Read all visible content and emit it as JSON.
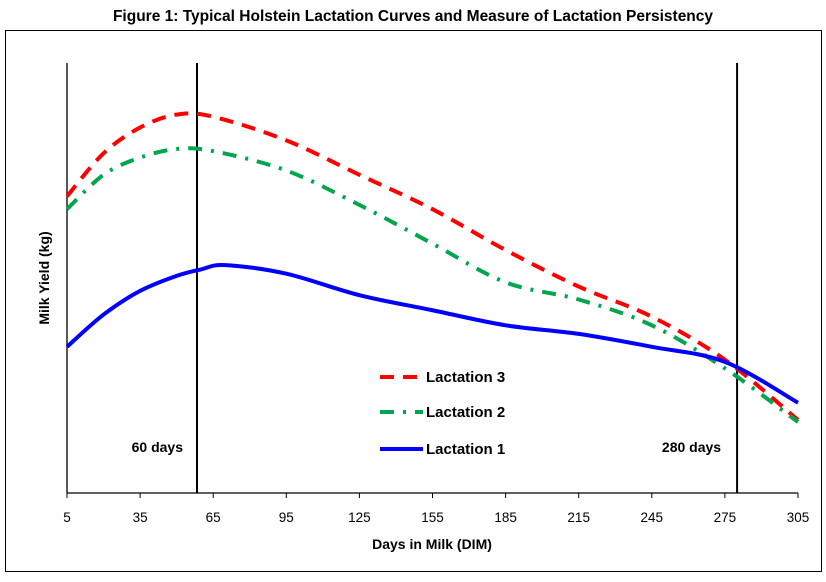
{
  "chart_data": {
    "type": "line",
    "title": "Figure 1: Typical Holstein Lactation Curves and Measure of Lactation Persistency",
    "xlabel": "Days in Milk (DIM)",
    "ylabel": "Milk Yield (kg)",
    "xlim": [
      5,
      305
    ],
    "ylim": [
      0,
      100
    ],
    "x_ticks": [
      "5",
      "35",
      "65",
      "95",
      "125",
      "155",
      "185",
      "215",
      "245",
      "275",
      "305"
    ],
    "y_ticks_shown": false,
    "grid": false,
    "legend_placement": "center-bottom",
    "reference_lines": [
      {
        "x": 60,
        "label": "60 days"
      },
      {
        "x": 280,
        "label": "280 days"
      }
    ],
    "series": [
      {
        "name": "Lactation 3",
        "color": "#ff0000",
        "style": "dashed",
        "x": [
          5,
          20,
          35,
          50,
          65,
          95,
          125,
          155,
          185,
          215,
          245,
          275,
          305
        ],
        "y": [
          69,
          79,
          85,
          88,
          87.5,
          82,
          74,
          66,
          56.5,
          48,
          41,
          31,
          17
        ]
      },
      {
        "name": "Lactation 2",
        "color": "#00a550",
        "style": "dash-dot",
        "x": [
          5,
          20,
          35,
          50,
          65,
          95,
          125,
          155,
          185,
          215,
          245,
          275,
          305
        ],
        "y": [
          66,
          74,
          78,
          80,
          79.5,
          75,
          67,
          58,
          49,
          45,
          39,
          29,
          16.5
        ]
      },
      {
        "name": "Lactation 1",
        "color": "#0000ff",
        "style": "solid",
        "x": [
          5,
          20,
          35,
          50,
          60,
          70,
          95,
          125,
          155,
          185,
          215,
          245,
          275,
          305
        ],
        "y": [
          34,
          41.5,
          47,
          50.5,
          52,
          53,
          51,
          46,
          42.5,
          39,
          37,
          34,
          30.5,
          21
        ]
      }
    ]
  }
}
